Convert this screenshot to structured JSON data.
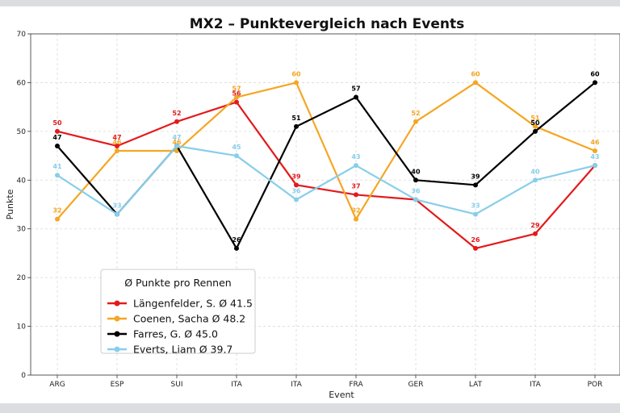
{
  "chart_data": {
    "type": "line",
    "title": "MX2 – Punktevergleich nach Events",
    "xlabel": "Event",
    "ylabel": "Punkte",
    "categories": [
      "ARG",
      "ESP",
      "SUI",
      "ITA",
      "ITA",
      "FRA",
      "GER",
      "LAT",
      "ITA",
      "POR"
    ],
    "ylim": [
      0,
      70
    ],
    "yticks": [
      0,
      10,
      20,
      30,
      40,
      50,
      60,
      70
    ],
    "grid": true,
    "legend": {
      "title": "Ø Punkte pro Rennen",
      "placement": "lower-left",
      "entries": [
        "Längenfelder, S. Ø 41.5",
        "Coenen, Sacha Ø 48.2",
        "Farres, G. Ø 45.0",
        "Everts, Liam Ø 39.7"
      ]
    },
    "series": [
      {
        "name": "Längenfelder, S.",
        "color": "#e31a1c",
        "values": [
          50,
          47,
          52,
          56,
          39,
          37,
          36,
          26,
          29,
          43
        ],
        "labeled": [
          true,
          true,
          true,
          true,
          true,
          true,
          false,
          true,
          true,
          false
        ]
      },
      {
        "name": "Coenen, Sacha",
        "color": "#f5a623",
        "values": [
          32,
          46,
          46,
          57,
          60,
          32,
          52,
          60,
          51,
          46
        ],
        "labeled": [
          true,
          true,
          true,
          true,
          true,
          true,
          true,
          true,
          true,
          true
        ]
      },
      {
        "name": "Farres, G.",
        "color": "#000000",
        "values": [
          47,
          33,
          47,
          26,
          51,
          57,
          40,
          39,
          50,
          60
        ],
        "labeled": [
          true,
          false,
          false,
          true,
          true,
          true,
          true,
          true,
          true,
          true
        ]
      },
      {
        "name": "Everts, Liam",
        "color": "#87ceeb",
        "values": [
          41,
          33,
          47,
          45,
          36,
          43,
          36,
          33,
          40,
          43
        ],
        "labeled": [
          true,
          true,
          true,
          true,
          true,
          true,
          true,
          true,
          true,
          true
        ]
      }
    ]
  }
}
